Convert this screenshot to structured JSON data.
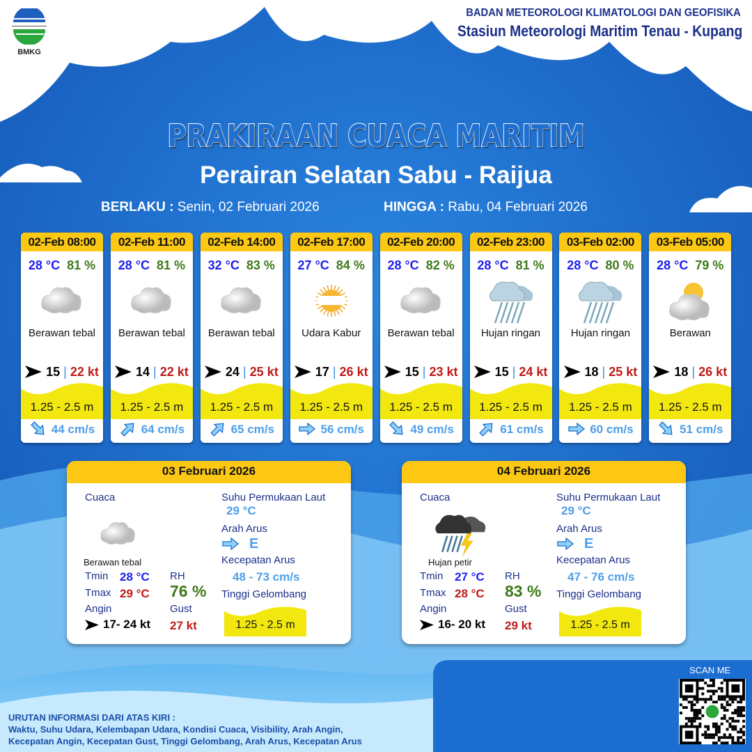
{
  "header": {
    "org": "BADAN METEOROLOGI KLIMATOLOGI DAN GEOFISIKA",
    "station": "Stasiun Meteorologi Maritim Tenau - Kupang",
    "logo_text": "BMKG"
  },
  "title": "PRAKIRAAN CUACA MARITIM",
  "subtitle": "Perairan Selatan Sabu - Raijua",
  "validity": {
    "from_label": "BERLAKU :",
    "from": "Senin, 02 Februari 2026",
    "to_label": "HINGGA :",
    "to": "Rabu, 04 Februari 2026"
  },
  "colors": {
    "header_yellow": "#fcc813",
    "temp": "#1d1ef0",
    "rh": "#3e7a1a",
    "gust": "#c01818",
    "wave": "#f2e80f",
    "current": "#4c9ee8"
  },
  "forecasts": [
    {
      "time": "02-Feb 08:00",
      "temp": "28 °C",
      "rh": "81 %",
      "icon": "cloud-icon",
      "weather": "Berawan tebal",
      "wind": "15",
      "gust": "22 kt",
      "wave": "1.25 - 2.5 m",
      "current_dir": "SE",
      "current": "44 cm/s"
    },
    {
      "time": "02-Feb 11:00",
      "temp": "28 °C",
      "rh": "81 %",
      "icon": "cloud-icon",
      "weather": "Berawan tebal",
      "wind": "14",
      "gust": "22 kt",
      "wave": "1.25 - 2.5 m",
      "current_dir": "NE",
      "current": "64 cm/s"
    },
    {
      "time": "02-Feb 14:00",
      "temp": "32 °C",
      "rh": "83 %",
      "icon": "cloud-icon",
      "weather": "Berawan tebal",
      "wind": "24",
      "gust": "25 kt",
      "wave": "1.25 - 2.5 m",
      "current_dir": "NE",
      "current": "65 cm/s"
    },
    {
      "time": "02-Feb 17:00",
      "temp": "27 °C",
      "rh": "84 %",
      "icon": "haze-sun-icon",
      "weather": "Udara Kabur",
      "wind": "17",
      "gust": "26 kt",
      "wave": "1.25 - 2.5 m",
      "current_dir": "E",
      "current": "56 cm/s"
    },
    {
      "time": "02-Feb 20:00",
      "temp": "28 °C",
      "rh": "82 %",
      "icon": "cloud-icon",
      "weather": "Berawan tebal",
      "wind": "15",
      "gust": "23 kt",
      "wave": "1.25 - 2.5 m",
      "current_dir": "SE",
      "current": "49 cm/s"
    },
    {
      "time": "02-Feb 23:00",
      "temp": "28 °C",
      "rh": "81 %",
      "icon": "rain-icon",
      "weather": "Hujan ringan",
      "wind": "15",
      "gust": "24 kt",
      "wave": "1.25 - 2.5 m",
      "current_dir": "NE",
      "current": "61 cm/s"
    },
    {
      "time": "03-Feb 02:00",
      "temp": "28 °C",
      "rh": "80 %",
      "icon": "rain-icon",
      "weather": "Hujan ringan",
      "wind": "18",
      "gust": "25 kt",
      "wave": "1.25 - 2.5 m",
      "current_dir": "E",
      "current": "60 cm/s"
    },
    {
      "time": "03-Feb 05:00",
      "temp": "28 °C",
      "rh": "79 %",
      "icon": "partly-cloudy-icon",
      "weather": "Berawan",
      "wind": "18",
      "gust": "26 kt",
      "wave": "1.25 - 2.5 m",
      "current_dir": "SE",
      "current": "51 cm/s"
    }
  ],
  "labels": {
    "weather": "Cuaca",
    "tmin": "Tmin",
    "tmax": "Tmax",
    "rh": "RH",
    "wind": "Angin",
    "gust": "Gust",
    "sst": "Suhu Permukaan Laut",
    "current_dir": "Arah Arus",
    "current_speed": "Kecepatan Arus",
    "wave": "Tinggi Gelombang"
  },
  "daily": [
    {
      "date": "03 Februari 2026",
      "icon": "cloud-icon",
      "weather": "Berawan tebal",
      "tmin": "28 °C",
      "tmax": "29 °C",
      "rh": "76 %",
      "wind": "17- 24 kt",
      "gust": "27 kt",
      "sst": "29 °C",
      "current_dir": "E",
      "current_speed": "48  - 73 cm/s",
      "wave": "1.25 - 2.5 m"
    },
    {
      "date": "04 Februari 2026",
      "icon": "thunderstorm-icon",
      "weather": "Hujan petir",
      "tmin": "27 °C",
      "tmax": "28 °C",
      "rh": "83 %",
      "wind": "16- 20 kt",
      "gust": "29 kt",
      "sst": "29 °C",
      "current_dir": "E",
      "current_speed": "47  - 76 cm/s",
      "wave": "1.25 - 2.5 m"
    }
  ],
  "footer": {
    "title": "URUTAN INFORMASI DARI ATAS KIRI :",
    "line1": "Waktu, Suhu Udara, Kelembapan Udara, Kondisi Cuaca, Visibility, Arah Angin,",
    "line2": "Kecepatan Angin, Kecepatan Gust, Tinggi Gelombang, Arah Arus, Kecepatan Arus"
  },
  "qr": {
    "label": "SCAN ME"
  }
}
